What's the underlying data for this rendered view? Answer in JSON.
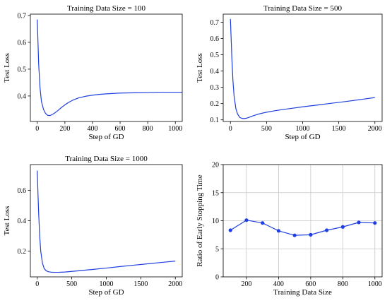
{
  "chart_data": [
    {
      "type": "line",
      "title": "Training Data Size = 100",
      "xlabel": "Step of GD",
      "ylabel": "Test Loss",
      "xlim": [
        -50,
        1050
      ],
      "ylim": [
        0.305,
        0.705
      ],
      "xticks": [
        0,
        200,
        400,
        600,
        800,
        1000
      ],
      "yticks": [
        0.4,
        0.5,
        0.6,
        0.7
      ],
      "grid": false,
      "series": [
        {
          "color": "#1f3fe0",
          "x": [
            0,
            10,
            20,
            30,
            45,
            60,
            75,
            90,
            100,
            115,
            130,
            150,
            175,
            200,
            230,
            260,
            300,
            350,
            400,
            450,
            500,
            600,
            700,
            800,
            900,
            1000,
            1050
          ],
          "y": [
            0.685,
            0.52,
            0.43,
            0.38,
            0.35,
            0.335,
            0.328,
            0.327,
            0.329,
            0.333,
            0.338,
            0.346,
            0.357,
            0.367,
            0.377,
            0.385,
            0.393,
            0.399,
            0.403,
            0.406,
            0.408,
            0.411,
            0.412,
            0.413,
            0.414,
            0.414,
            0.414
          ]
        }
      ]
    },
    {
      "type": "line",
      "title": "Training Data Size = 500",
      "xlabel": "Step of GD",
      "ylabel": "Test Loss",
      "xlim": [
        -100,
        2100
      ],
      "ylim": [
        0.09,
        0.75
      ],
      "xticks": [
        0,
        500,
        1000,
        1500,
        2000
      ],
      "yticks": [
        0.1,
        0.2,
        0.3,
        0.4,
        0.5,
        0.6,
        0.7
      ],
      "grid": false,
      "series": [
        {
          "color": "#1f3fe0",
          "x": [
            0,
            10,
            20,
            35,
            50,
            75,
            100,
            130,
            160,
            190,
            220,
            260,
            300,
            350,
            400,
            500,
            600,
            700,
            800,
            1000,
            1200,
            1400,
            1600,
            1800,
            2000
          ],
          "y": [
            0.72,
            0.6,
            0.48,
            0.34,
            0.25,
            0.17,
            0.135,
            0.115,
            0.109,
            0.108,
            0.11,
            0.116,
            0.123,
            0.13,
            0.137,
            0.147,
            0.155,
            0.162,
            0.168,
            0.18,
            0.191,
            0.202,
            0.213,
            0.225,
            0.237
          ]
        }
      ]
    },
    {
      "type": "line",
      "title": "Training Data Size = 1000",
      "xlabel": "Step of GD",
      "ylabel": "Test Loss",
      "xlim": [
        -100,
        2100
      ],
      "ylim": [
        0.03,
        0.77
      ],
      "xticks": [
        0,
        500,
        1000,
        1500,
        2000
      ],
      "yticks": [
        0.2,
        0.4,
        0.6
      ],
      "grid": false,
      "series": [
        {
          "color": "#1f3fe0",
          "x": [
            0,
            10,
            20,
            35,
            50,
            75,
            100,
            130,
            160,
            200,
            250,
            300,
            350,
            400,
            500,
            600,
            800,
            1000,
            1200,
            1400,
            1600,
            1800,
            2000
          ],
          "y": [
            0.73,
            0.58,
            0.45,
            0.3,
            0.2,
            0.12,
            0.085,
            0.07,
            0.064,
            0.061,
            0.06,
            0.06,
            0.061,
            0.062,
            0.066,
            0.07,
            0.079,
            0.088,
            0.098,
            0.107,
            0.116,
            0.125,
            0.134
          ]
        }
      ]
    },
    {
      "type": "line",
      "title": "",
      "xlabel": "Training Data Size",
      "ylabel": "Ratio of Early Stopping Time",
      "xlim": [
        55,
        1045
      ],
      "ylim": [
        0,
        20
      ],
      "xticks": [
        200,
        400,
        600,
        800,
        1000
      ],
      "yticks": [
        0,
        5,
        10,
        15,
        20
      ],
      "grid": true,
      "markers": true,
      "series": [
        {
          "color": "#1f3fe0",
          "x": [
            100,
            200,
            300,
            400,
            500,
            600,
            700,
            800,
            900,
            1000
          ],
          "y": [
            8.3,
            10.1,
            9.6,
            8.2,
            7.4,
            7.5,
            8.3,
            8.9,
            9.7,
            9.6
          ]
        }
      ]
    }
  ]
}
